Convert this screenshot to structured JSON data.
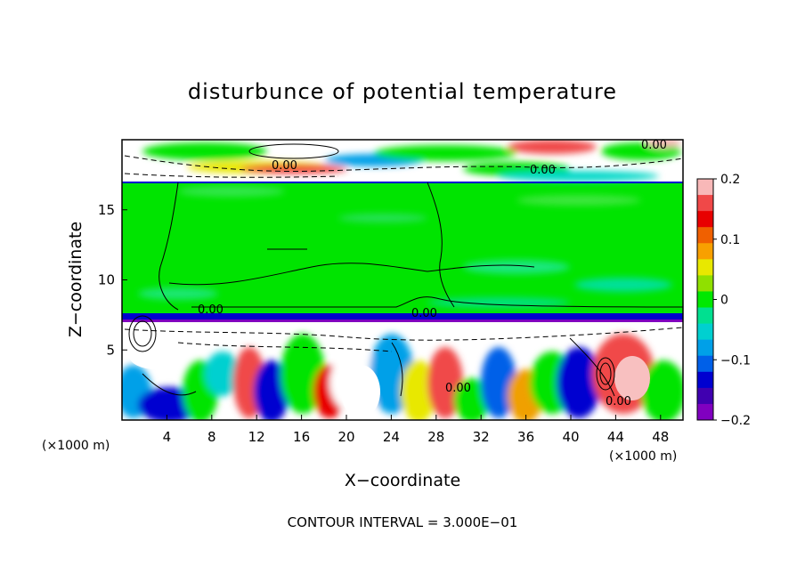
{
  "chart_data": {
    "type": "heatmap",
    "title": "disturbunce of potential temperature",
    "xlabel": "X−coordinate",
    "ylabel": "Z−coordinate",
    "x_unit_label": "(×1000 m)",
    "x_unit_label_right": "(×1000 m)",
    "xlim": [
      0,
      50
    ],
    "ylim": [
      0,
      20
    ],
    "x_ticks": [
      4,
      8,
      12,
      16,
      20,
      24,
      28,
      32,
      36,
      40,
      44,
      48
    ],
    "y_ticks": [
      5,
      10,
      15
    ],
    "colorbar": {
      "range": [
        -0.2,
        0.2
      ],
      "ticks": [
        "0.2",
        "0.1",
        "0",
        "−0.1",
        "−0.2"
      ],
      "tick_values": [
        0.2,
        0.1,
        0,
        -0.1,
        -0.2
      ],
      "colors": [
        "#f8b8b8",
        "#f04848",
        "#e80000",
        "#f06000",
        "#f8a000",
        "#e8e800",
        "#90e000",
        "#00e800",
        "#00e090",
        "#00d0d0",
        "#00a0e8",
        "#0060e8",
        "#0000d0",
        "#4000b0",
        "#8000c0"
      ]
    },
    "contour_interval": "CONTOUR INTERVAL = 3.000E−01",
    "contour_labels": [
      "0.00",
      "0.00",
      "0.00",
      "0.00",
      "0.00",
      "0.00",
      "0.00"
    ],
    "layers": [
      {
        "z_range": [
          17,
          20
        ],
        "description_value": "mixed"
      },
      {
        "z_range": [
          7.5,
          17
        ],
        "value": 0.0
      },
      {
        "z_range": [
          0,
          7.5
        ],
        "description_value": "mixed"
      }
    ]
  }
}
